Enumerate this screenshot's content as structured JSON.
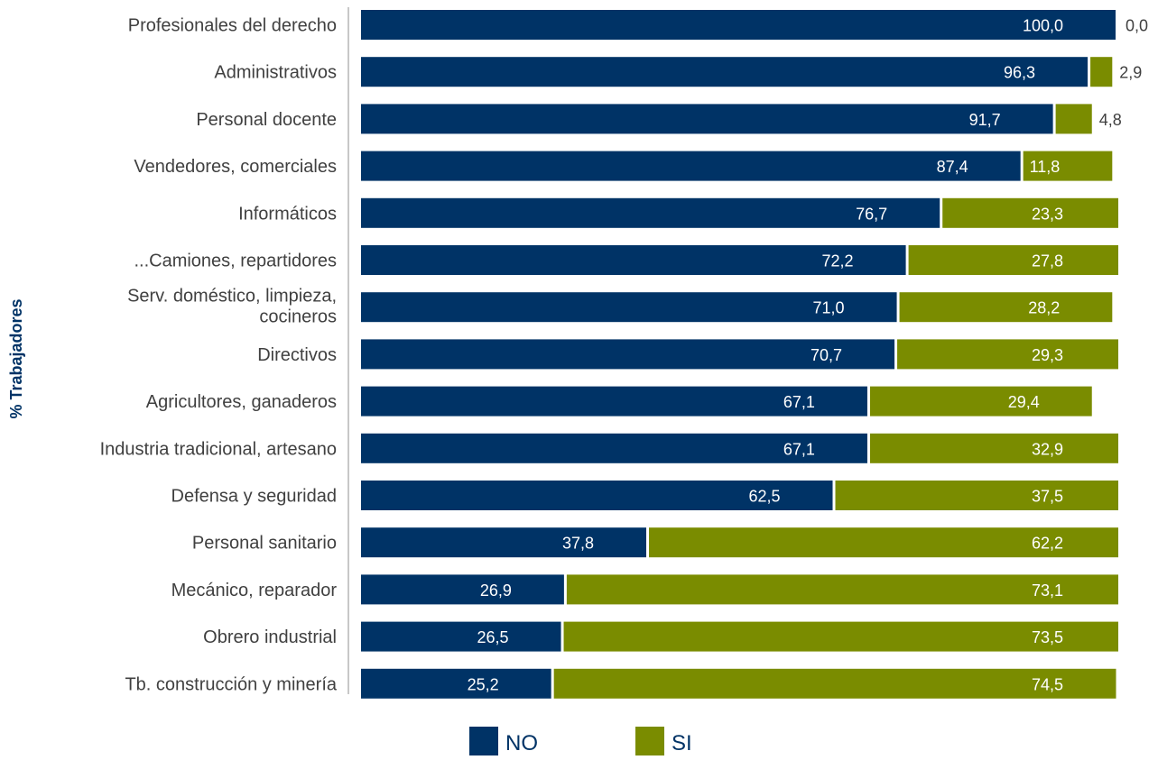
{
  "chart_data": {
    "type": "bar",
    "orientation": "horizontal",
    "stacked": true,
    "ylabel": "% Trabajadores",
    "categories": [
      "Profesionales del derecho",
      "Administrativos",
      "Personal docente",
      "Vendedores, comerciales",
      "Informáticos",
      "...Camiones, repartidores",
      "Serv. doméstico, limpieza, cocineros",
      "Directivos",
      "Agricultores, ganaderos",
      "Industria tradicional, artesano",
      "Defensa y seguridad",
      "Personal sanitario",
      "Mecánico, reparador",
      "Obrero industrial",
      "Tb. construcción y minería"
    ],
    "category_lines": [
      [
        "Profesionales del derecho"
      ],
      [
        "Administrativos"
      ],
      [
        "Personal docente"
      ],
      [
        "Vendedores, comerciales"
      ],
      [
        "Informáticos"
      ],
      [
        "...Camiones, repartidores"
      ],
      [
        "Serv. doméstico, limpieza,",
        "cocineros"
      ],
      [
        "Directivos"
      ],
      [
        "Agricultores, ganaderos"
      ],
      [
        "Industria tradicional, artesano"
      ],
      [
        "Defensa y seguridad"
      ],
      [
        "Personal sanitario"
      ],
      [
        "Mecánico, reparador"
      ],
      [
        "Obrero industrial"
      ],
      [
        "Tb. construcción y minería"
      ]
    ],
    "series": [
      {
        "name": "NO",
        "color": "#003366",
        "values": [
          100.0,
          96.3,
          91.7,
          87.4,
          76.7,
          72.2,
          71.0,
          70.7,
          67.1,
          67.1,
          62.5,
          37.8,
          26.9,
          26.5,
          25.2
        ],
        "labels": [
          "100,0",
          "96,3",
          "91,7",
          "87,4",
          "76,7",
          "72,2",
          "71,0",
          "70,7",
          "67,1",
          "67,1",
          "62,5",
          "37,8",
          "26,9",
          "26,5",
          "25,2"
        ]
      },
      {
        "name": "SI",
        "color": "#7a8c00",
        "values": [
          0.0,
          2.9,
          4.8,
          11.8,
          23.3,
          27.8,
          28.2,
          29.3,
          29.4,
          32.9,
          37.5,
          62.2,
          73.1,
          73.5,
          74.5
        ],
        "labels": [
          "0,0",
          "2,9",
          "4,8",
          "11,8",
          "23,3",
          "27,8",
          "28,2",
          "29,3",
          "29,4",
          "32,9",
          "37,5",
          "62,2",
          "73,1",
          "73,5",
          "74,5"
        ]
      }
    ],
    "xlim": [
      0,
      100
    ],
    "grid": false,
    "legend_position": "bottom-center"
  }
}
